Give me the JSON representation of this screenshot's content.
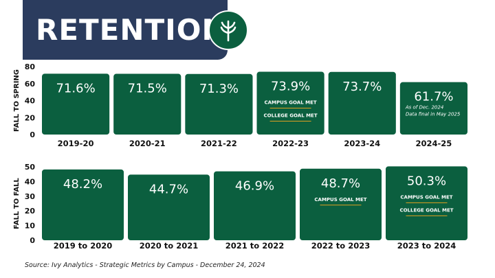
{
  "header": {
    "title": "RETENTION",
    "logo_icon": "ivy-leaf-icon"
  },
  "colors": {
    "bar": "#0b5f3f",
    "banner": "#2b3c5e",
    "goal_divider": "#e0a020"
  },
  "chart_data": [
    {
      "type": "bar",
      "ylabel": "FALL TO SPRING",
      "ylim": [
        0,
        80
      ],
      "yticks": [
        0,
        20,
        40,
        60,
        80
      ],
      "categories": [
        "2019-20",
        "2020-21",
        "2021-22",
        "2022-23",
        "2023-24",
        "2024-25"
      ],
      "values": [
        71.6,
        71.5,
        71.3,
        73.9,
        73.7,
        61.7
      ],
      "value_labels": [
        "71.6%",
        "71.5%",
        "71.3%",
        "73.9%",
        "73.7%",
        "61.7%"
      ],
      "annotations": [
        {
          "category": "2022-23",
          "lines": [
            "CAMPUS GOAL MET",
            "COLLEGE GOAL MET"
          ]
        },
        {
          "category": "2024-25",
          "lines": [
            "As of Dec. 2024",
            "Data final in May 2025"
          ]
        }
      ]
    },
    {
      "type": "bar",
      "ylabel": "FALL TO FALL",
      "ylim": [
        0,
        50
      ],
      "yticks": [
        0,
        10,
        20,
        30,
        40,
        50
      ],
      "categories": [
        "2019 to 2020",
        "2020 to 2021",
        "2021 to 2022",
        "2022 to 2023",
        "2023 to 2024"
      ],
      "values": [
        48.2,
        44.7,
        46.9,
        48.7,
        50.3
      ],
      "value_labels": [
        "48.2%",
        "44.7%",
        "46.9%",
        "48.7%",
        "50.3%"
      ],
      "annotations": [
        {
          "category": "2022 to 2023",
          "lines": [
            "CAMPUS GOAL MET"
          ]
        },
        {
          "category": "2023 to 2024",
          "lines": [
            "CAMPUS GOAL MET",
            "COLLEGE GOAL MET"
          ]
        }
      ]
    }
  ],
  "footer": {
    "source": "Source: Ivy Analytics - Strategic Metrics by Campus - December 24, 2024"
  }
}
